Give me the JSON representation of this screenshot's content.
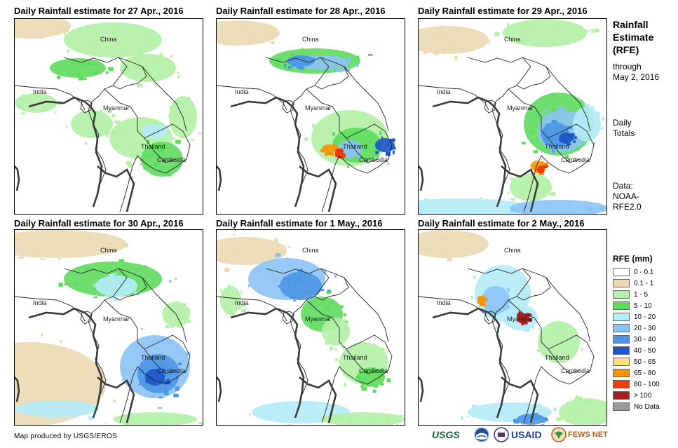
{
  "panels": [
    {
      "title": "Daily Rainfall estimate for 27 Apr., 2016",
      "labels": [
        "China",
        "India",
        "Myanmar",
        "Thailand",
        "Cambodia"
      ]
    },
    {
      "title": "Daily Rainfall estimate for 28 Apr., 2016",
      "labels": [
        "China",
        "India",
        "Myanmar",
        "Thailand",
        "Cambodia"
      ]
    },
    {
      "title": "Daily Rainfall estimate for 29 Apr., 2016",
      "labels": [
        "China",
        "India",
        "Myanmar",
        "Thailand",
        "Cambodia"
      ]
    },
    {
      "title": "Daily Rainfall estimate for 30 Apr., 2016",
      "labels": [
        "China",
        "India",
        "Myanmar",
        "Thailand",
        "Cambodia"
      ]
    },
    {
      "title": "Daily Rainfall estimate for 1 May., 2016",
      "labels": [
        "China",
        "India",
        "Myanmar",
        "Thailand",
        "Cambodia"
      ]
    },
    {
      "title": "Daily Rainfall estimate for 2 May., 2016",
      "labels": [
        "China",
        "India",
        "Myanmar",
        "Thailand",
        "Cambodia"
      ]
    }
  ],
  "sidebar": {
    "title_line1": "Rainfall",
    "title_line2": "Estimate",
    "title_line3": "(RFE)",
    "through_line1": "through",
    "through_line2": "May 2, 2016",
    "daily_line1": "Daily",
    "daily_line2": "Totals",
    "data_line1": "Data:",
    "data_line2": "NOAA-",
    "data_line3": "RFE2.0"
  },
  "legend": {
    "title": "RFE (mm)",
    "items": [
      {
        "label": "0 - 0.1",
        "color": "#ffffff"
      },
      {
        "label": "0.1 - 1",
        "color": "#ecd9b4"
      },
      {
        "label": "1 - 5",
        "color": "#b4f0a5"
      },
      {
        "label": "5 - 10",
        "color": "#5edc5e"
      },
      {
        "label": "10 - 20",
        "color": "#b4ebf8"
      },
      {
        "label": "20 - 30",
        "color": "#8cc3f5"
      },
      {
        "label": "30 - 40",
        "color": "#4b96e6"
      },
      {
        "label": "40 - 50",
        "color": "#1e55c8"
      },
      {
        "label": "50 - 65",
        "color": "#fae178"
      },
      {
        "label": "65 - 80",
        "color": "#f59600"
      },
      {
        "label": "80 - 100",
        "color": "#f03c00"
      },
      {
        "label": "> 100",
        "color": "#a51e1e"
      },
      {
        "label": "No Data",
        "color": "#999999"
      }
    ]
  },
  "footer": {
    "credit": "Map produced by USGS/EROS",
    "logos": [
      "USGS",
      "NOAA",
      "USAID",
      "FEWS NET"
    ]
  }
}
